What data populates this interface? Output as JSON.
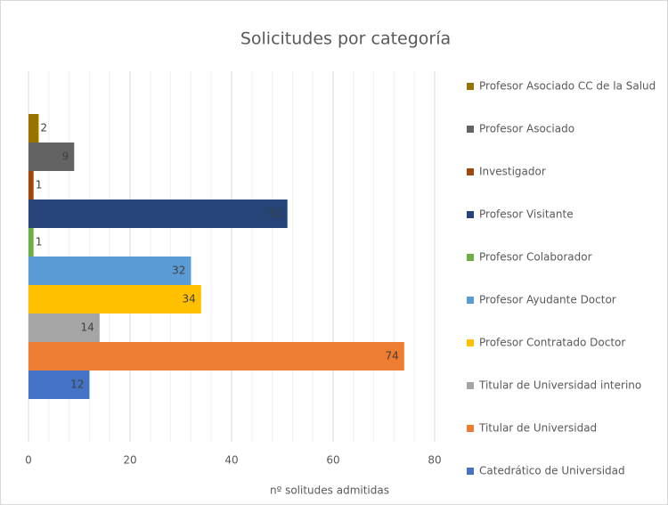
{
  "chart_data": {
    "type": "bar",
    "orientation": "horizontal",
    "title": "Solicitudes por categoría",
    "x_label": "nº solitudes admitidas",
    "xlim": [
      0,
      80
    ],
    "xticks": [
      0,
      20,
      40,
      60,
      80
    ],
    "minor_xticks": [
      4,
      8,
      12,
      16,
      24,
      28,
      32,
      36,
      44,
      48,
      52,
      56,
      64,
      68,
      72,
      76
    ],
    "grid": true,
    "legend": "right",
    "series": [
      {
        "name": "Catedrático de Universidad",
        "color": "#4472c4",
        "values": [
          12
        ]
      },
      {
        "name": "Titular de Universidad",
        "color": "#ed7d31",
        "values": [
          74
        ]
      },
      {
        "name": "Titular de Universidad interino",
        "color": "#a5a5a5",
        "values": [
          14
        ]
      },
      {
        "name": "Profesor Contratado Doctor",
        "color": "#ffc000",
        "values": [
          34
        ]
      },
      {
        "name": "Profesor Ayudante Doctor",
        "color": "#5b9bd5",
        "values": [
          32
        ]
      },
      {
        "name": "Profesor Colaborador",
        "color": "#70ad47",
        "values": [
          1
        ]
      },
      {
        "name": "Profesor Visitante",
        "color": "#264478",
        "values": [
          51
        ]
      },
      {
        "name": "Investigador",
        "color": "#9e480e",
        "values": [
          1
        ]
      },
      {
        "name": "Profesor Asociado",
        "color": "#636363",
        "values": [
          9
        ]
      },
      {
        "name": "Profesor Asociado CC de la Salud",
        "color": "#997300",
        "values": [
          2
        ]
      }
    ]
  }
}
